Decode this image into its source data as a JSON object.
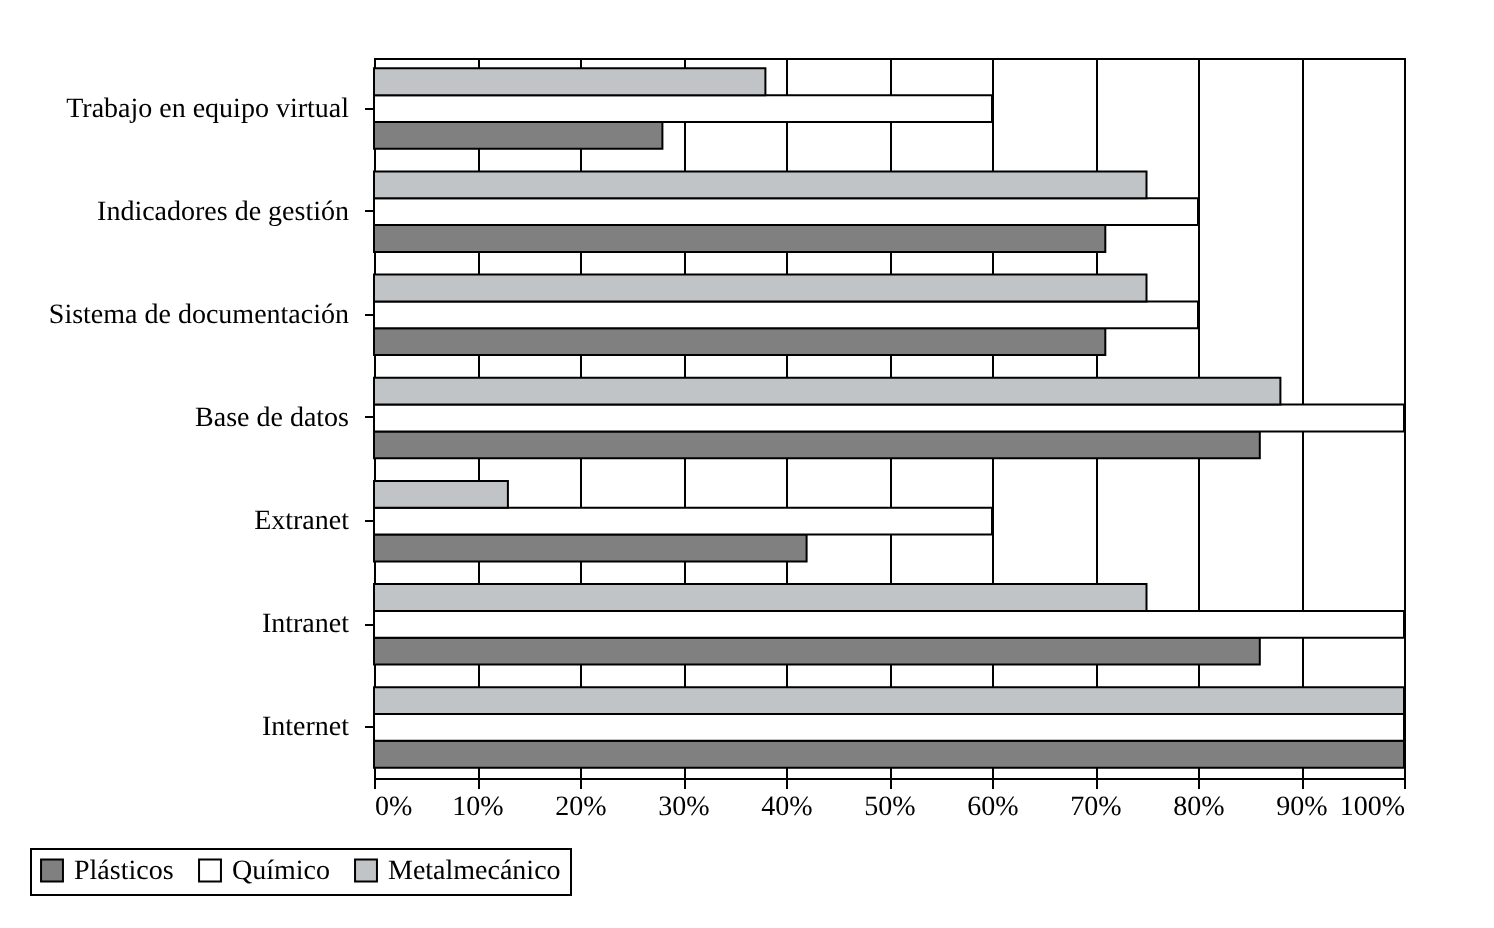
{
  "chart_data": {
    "type": "bar",
    "orientation": "horizontal",
    "categories": [
      "Trabajo en equipo virtual",
      "Indicadores de gestión",
      "Sistema de documentación",
      "Base de datos",
      "Extranet",
      "Intranet",
      "Internet"
    ],
    "series": [
      {
        "name": "Plásticos",
        "color": "#808080",
        "values": [
          28,
          71,
          71,
          86,
          42,
          86,
          100
        ]
      },
      {
        "name": "Químico",
        "color": "#ffffff",
        "values": [
          60,
          80,
          80,
          100,
          60,
          100,
          100
        ]
      },
      {
        "name": "Metalmecánico",
        "color": "#c0c4c6",
        "values": [
          38,
          75,
          75,
          88,
          13,
          75,
          100
        ]
      }
    ],
    "xlim": [
      0,
      100
    ],
    "xticks": [
      {
        "value": 0,
        "label": "0%"
      },
      {
        "value": 10,
        "label": "10%"
      },
      {
        "value": 20,
        "label": "20%"
      },
      {
        "value": 30,
        "label": "30%"
      },
      {
        "value": 40,
        "label": "40%"
      },
      {
        "value": 50,
        "label": "50%"
      },
      {
        "value": 60,
        "label": "60%"
      },
      {
        "value": 70,
        "label": "70%"
      },
      {
        "value": 80,
        "label": "80%"
      },
      {
        "value": 90,
        "label": "90%"
      },
      {
        "value": 100,
        "label": "100%"
      }
    ],
    "grid": "x",
    "legend": "bottom left"
  }
}
